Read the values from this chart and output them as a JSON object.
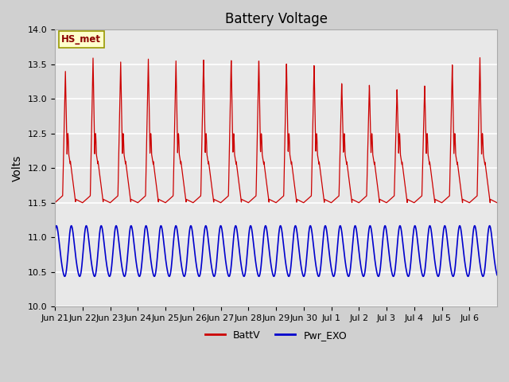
{
  "title": "Battery Voltage",
  "ylabel": "Volts",
  "ylim": [
    10.0,
    14.0
  ],
  "yticks": [
    10.0,
    10.5,
    11.0,
    11.5,
    12.0,
    12.5,
    13.0,
    13.5,
    14.0
  ],
  "xtick_labels": [
    "Jun 21",
    "Jun 22",
    "Jun 23",
    "Jun 24",
    "Jun 25",
    "Jun 26",
    "Jun 27",
    "Jun 28",
    "Jun 29",
    "Jun 30",
    "Jul 1",
    "Jul 2",
    "Jul 3",
    "Jul 4",
    "Jul 5",
    "Jul 6"
  ],
  "battv_color": "#cc0000",
  "pwr_exo_color": "#0000cc",
  "legend_label_battv": "BattV",
  "legend_label_pwr": "Pwr_EXO",
  "annotation_text": "HS_met",
  "annotation_bg": "#ffffcc",
  "annotation_border": "#999900",
  "fig_facecolor": "#d0d0d0",
  "plot_facecolor": "#e8e8e8",
  "title_fontsize": 12,
  "axis_fontsize": 10,
  "tick_fontsize": 8,
  "legend_fontsize": 9
}
